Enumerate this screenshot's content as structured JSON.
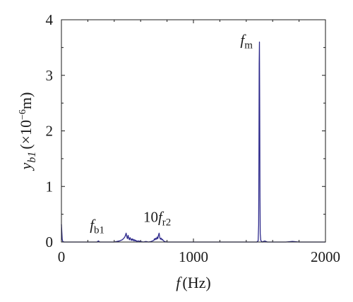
{
  "chart_data": {
    "type": "line",
    "xlabel": {
      "var": "f",
      "unit": "(Hz)"
    },
    "ylabel": {
      "var": "y",
      "sub": "b1",
      "unit_open": "(×10",
      "unit_exp": "−6",
      "unit_close": "m)"
    },
    "xlim": [
      0,
      2000
    ],
    "ylim": [
      0,
      4
    ],
    "xticks": [
      0,
      1000,
      2000
    ],
    "yticks": [
      0,
      1,
      2,
      3,
      4
    ],
    "grid": false,
    "line_color": "#2e2a8c",
    "annotations": [
      {
        "id": "fb1",
        "coef": "",
        "var": "f",
        "sub": "b1",
        "x": 215,
        "y": 0.22
      },
      {
        "id": "fr2",
        "coef": "10",
        "var": "f",
        "sub": "r2",
        "x": 620,
        "y": 0.36
      },
      {
        "id": "fm",
        "coef": "",
        "var": "f",
        "sub": "m",
        "x": 1355,
        "y": 3.55
      }
    ],
    "series": [
      {
        "x": [
          0,
          3,
          6,
          10,
          20,
          40,
          80,
          120,
          160,
          200,
          240,
          270,
          280,
          290,
          320,
          360,
          400,
          440,
          460,
          470,
          480,
          485,
          490,
          495,
          500,
          505,
          510,
          515,
          520,
          525,
          530,
          535,
          540,
          545,
          550,
          555,
          560,
          565,
          570,
          580,
          600,
          620,
          640,
          660,
          680,
          690,
          700,
          705,
          710,
          715,
          720,
          725,
          730,
          735,
          740,
          745,
          750,
          755,
          760,
          765,
          770,
          775,
          780,
          800,
          850,
          900,
          950,
          1000,
          1100,
          1200,
          1300,
          1400,
          1450,
          1480,
          1490,
          1494,
          1496,
          1498,
          1500,
          1502,
          1504,
          1506,
          1510,
          1520,
          1540,
          1560,
          1600,
          1700,
          1750,
          1800,
          1900,
          2000
        ],
        "y": [
          0.32,
          0.18,
          0.05,
          0.01,
          0.0,
          0.0,
          0.0,
          0.0,
          0.0,
          0.0,
          0.0,
          0.0,
          0.02,
          0.0,
          0.0,
          0.0,
          0.0,
          0.02,
          0.04,
          0.06,
          0.09,
          0.12,
          0.16,
          0.1,
          0.06,
          0.12,
          0.07,
          0.04,
          0.08,
          0.05,
          0.03,
          0.06,
          0.03,
          0.05,
          0.02,
          0.04,
          0.02,
          0.03,
          0.01,
          0.02,
          0.01,
          0.0,
          0.01,
          0.0,
          0.01,
          0.02,
          0.03,
          0.06,
          0.04,
          0.07,
          0.05,
          0.09,
          0.06,
          0.12,
          0.16,
          0.08,
          0.05,
          0.07,
          0.04,
          0.05,
          0.03,
          0.02,
          0.01,
          0.0,
          0.0,
          0.0,
          0.0,
          0.0,
          0.0,
          0.0,
          0.0,
          0.0,
          0.0,
          0.0,
          0.02,
          0.3,
          1.5,
          3.2,
          3.6,
          2.4,
          0.8,
          0.15,
          0.03,
          0.0,
          0.02,
          0.0,
          0.0,
          0.0,
          0.01,
          0.0,
          0.0,
          0.0
        ]
      }
    ]
  }
}
